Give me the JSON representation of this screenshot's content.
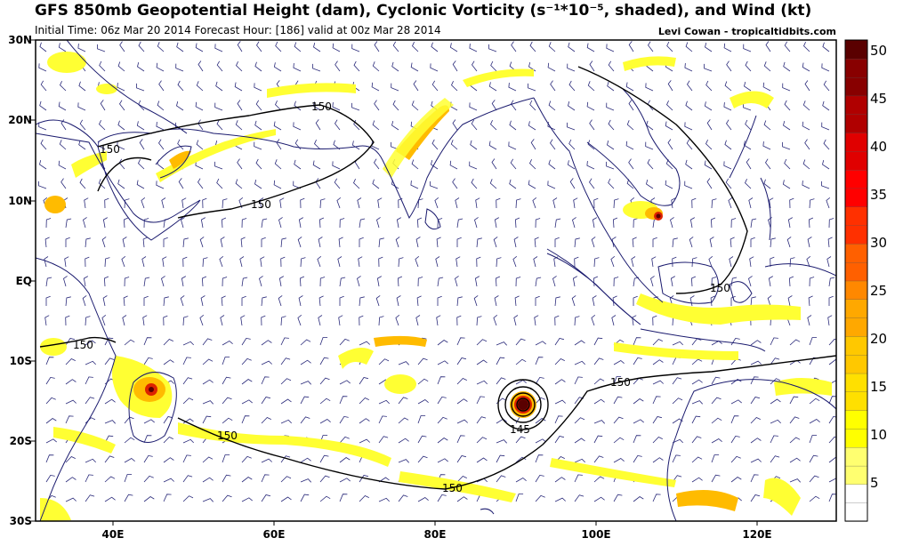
{
  "header": {
    "title": "GFS 850mb Geopotential Height (dam), Cyclonic Vorticity (s⁻¹*10⁻⁵, shaded), and Wind (kt)",
    "subtitle": "Initial Time: 06z Mar 20 2014 Forecast Hour: [186] valid at 00z Mar 28 2014",
    "credit": "Levi Cowan - tropicaltidbits.com"
  },
  "axes": {
    "lat_labels": [
      "30N",
      "20N",
      "10N",
      "EQ",
      "10S",
      "20S",
      "30S"
    ],
    "lon_labels": [
      "40E",
      "60E",
      "80E",
      "100E",
      "120E"
    ]
  },
  "contours": {
    "labels": [
      "150",
      "150",
      "150",
      "150",
      "150",
      "150",
      "145"
    ]
  },
  "colorbar": {
    "labels": [
      "50",
      "45",
      "40",
      "35",
      "30",
      "25",
      "20",
      "15",
      "10",
      "5"
    ],
    "colors": [
      "#ffffff",
      "#ffff70",
      "#ffff00",
      "#ffe000",
      "#ffc800",
      "#ffa800",
      "#ff8800",
      "#ff6000",
      "#ff3000",
      "#ff0000",
      "#e00000",
      "#b00000",
      "#880000",
      "#5a0000"
    ]
  },
  "colors": {
    "land_outline": "#1a1a6e",
    "contour": "#000000",
    "barb": "#2a2a7a",
    "vort_low": "#ffff33",
    "vort_mid": "#ffbb00",
    "vort_high": "#dd2200"
  }
}
